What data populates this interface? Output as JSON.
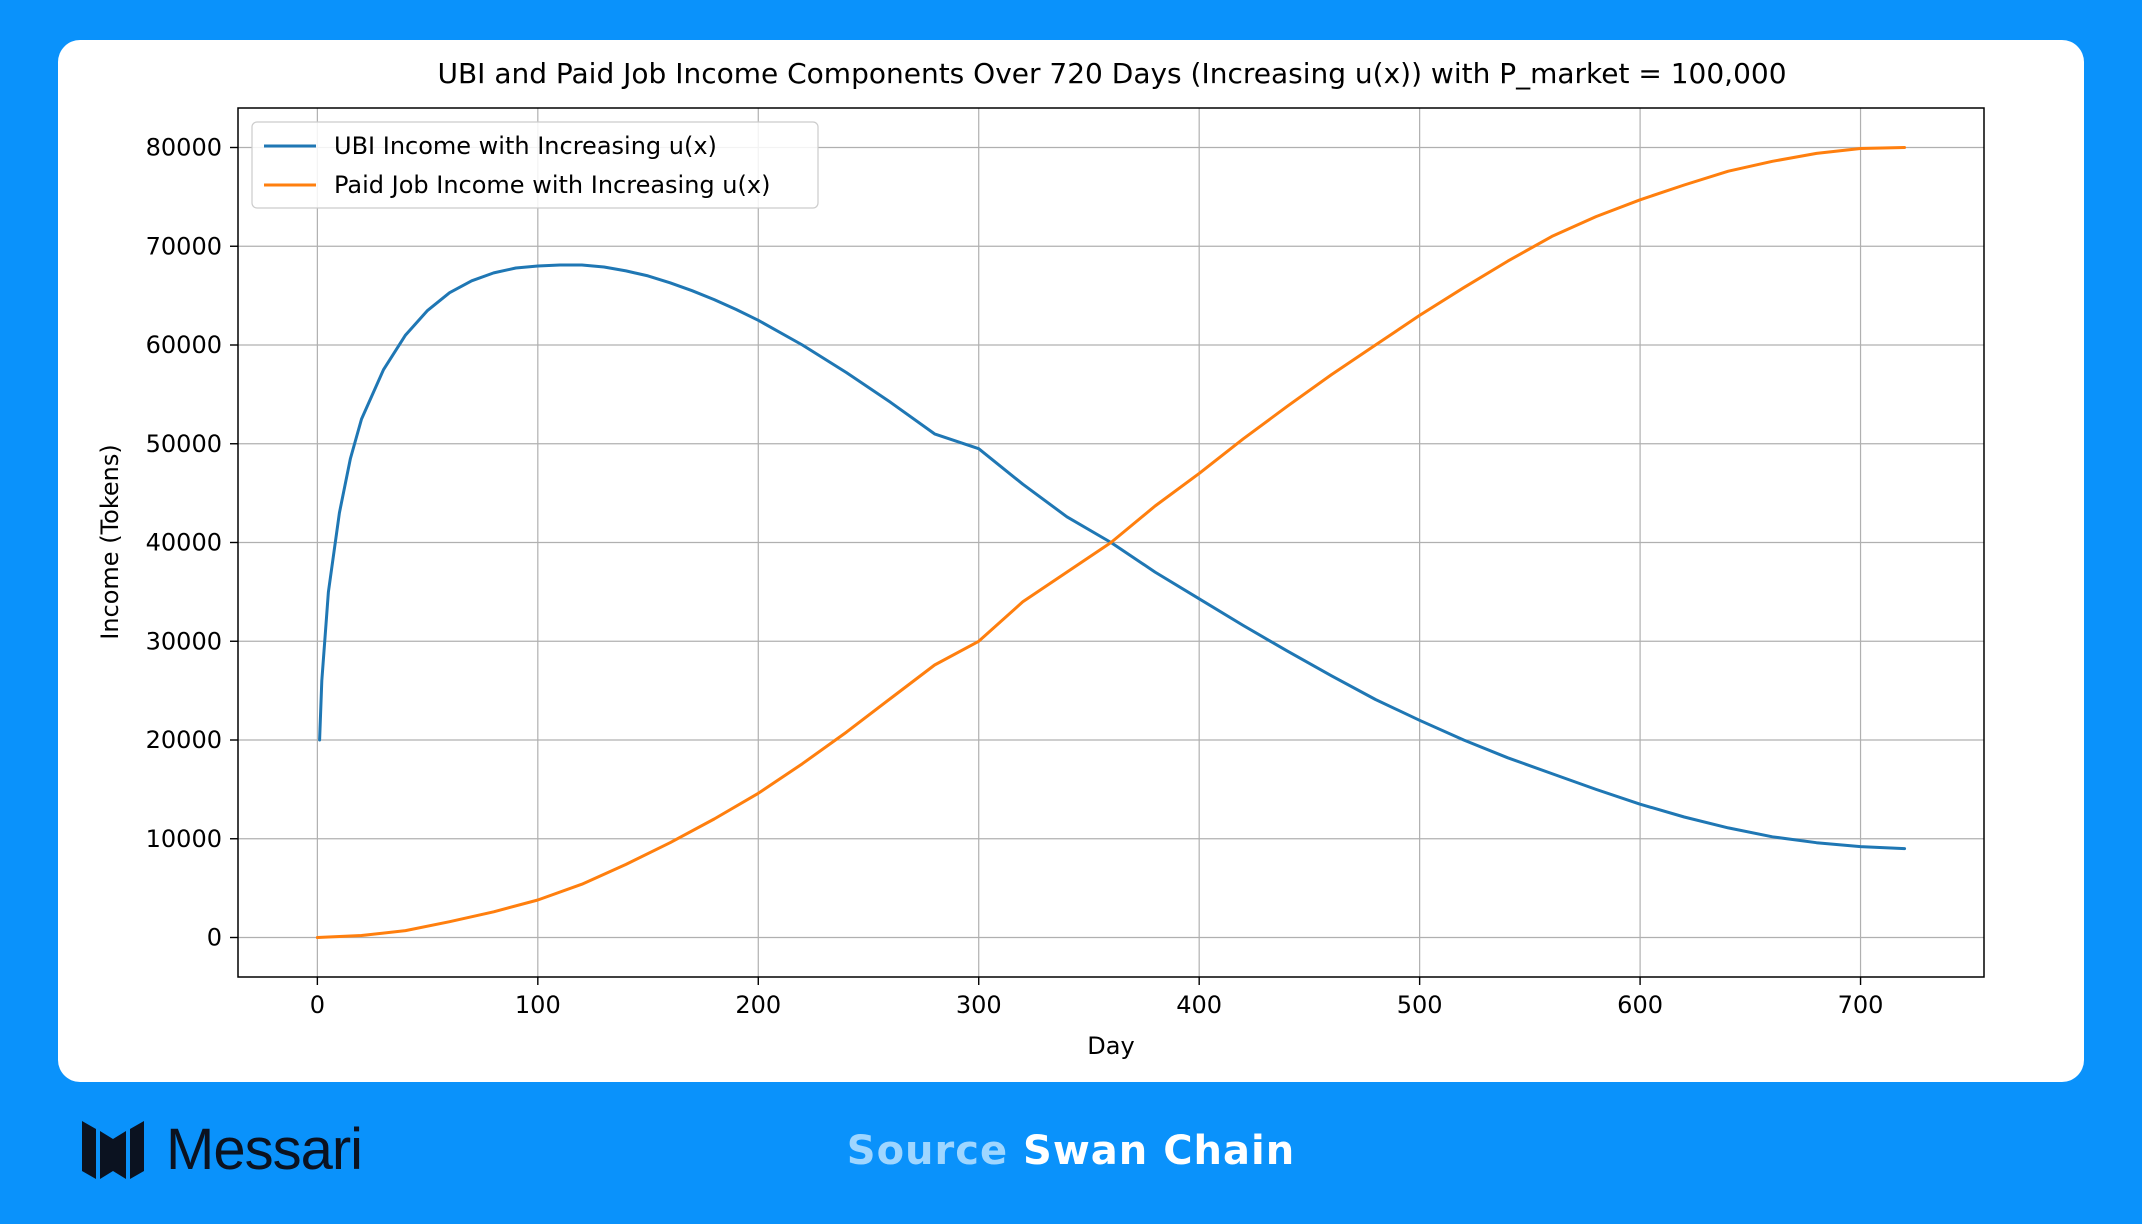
{
  "brand": {
    "logo_text": "Messari",
    "logo_icon": "messari-m-icon",
    "source_label": "Source",
    "source_value": "Swan Chain"
  },
  "colors": {
    "background": "#0a92fb",
    "series_ubi": "#1f77b4",
    "series_paid": "#ff7f0e"
  },
  "chart_data": {
    "type": "line",
    "title": "UBI and Paid Job Income Components Over 720 Days (Increasing u(x)) with P_market = 100,000",
    "xlabel": "Day",
    "ylabel": "Income (Tokens)",
    "xlim": [
      -36,
      756
    ],
    "ylim": [
      -4000,
      84000
    ],
    "xticks": [
      0,
      100,
      200,
      300,
      400,
      500,
      600,
      700
    ],
    "yticks": [
      0,
      10000,
      20000,
      30000,
      40000,
      50000,
      60000,
      70000,
      80000
    ],
    "grid": true,
    "legend_position": "top-left",
    "series": [
      {
        "name": "UBI Income with Increasing u(x)",
        "color": "#1f77b4",
        "x": [
          1,
          2,
          5,
          10,
          15,
          20,
          30,
          40,
          50,
          60,
          70,
          80,
          90,
          100,
          110,
          120,
          130,
          140,
          150,
          160,
          170,
          180,
          190,
          200,
          220,
          240,
          260,
          280,
          300,
          320,
          340,
          360,
          380,
          400,
          420,
          440,
          460,
          480,
          500,
          520,
          540,
          560,
          580,
          600,
          620,
          640,
          660,
          680,
          700,
          720
        ],
        "values": [
          20000,
          26000,
          35000,
          43000,
          48500,
          52500,
          57500,
          61000,
          63500,
          65300,
          66500,
          67300,
          67800,
          68000,
          68100,
          68100,
          67900,
          67500,
          67000,
          66300,
          65500,
          64600,
          63600,
          62500,
          60000,
          57200,
          54200,
          51000,
          49500,
          45900,
          42600,
          40000,
          37000,
          34300,
          31600,
          29000,
          26500,
          24100,
          22000,
          20000,
          18200,
          16600,
          15000,
          13500,
          12200,
          11100,
          10200,
          9600,
          9200,
          9000
        ]
      },
      {
        "name": "Paid Job Income with Increasing u(x)",
        "color": "#ff7f0e",
        "x": [
          0,
          20,
          40,
          60,
          80,
          100,
          120,
          140,
          160,
          180,
          200,
          220,
          240,
          260,
          280,
          300,
          320,
          340,
          360,
          380,
          400,
          420,
          440,
          460,
          480,
          500,
          520,
          540,
          560,
          580,
          600,
          620,
          640,
          660,
          680,
          700,
          720
        ],
        "values": [
          0,
          200,
          700,
          1600,
          2600,
          3800,
          5400,
          7400,
          9600,
          12000,
          14600,
          17600,
          20800,
          24200,
          27600,
          30000,
          34000,
          37000,
          40000,
          43700,
          47000,
          50500,
          53800,
          57000,
          60000,
          63000,
          65800,
          68500,
          71000,
          73000,
          74700,
          76200,
          77600,
          78600,
          79400,
          79900,
          80000
        ]
      }
    ]
  }
}
